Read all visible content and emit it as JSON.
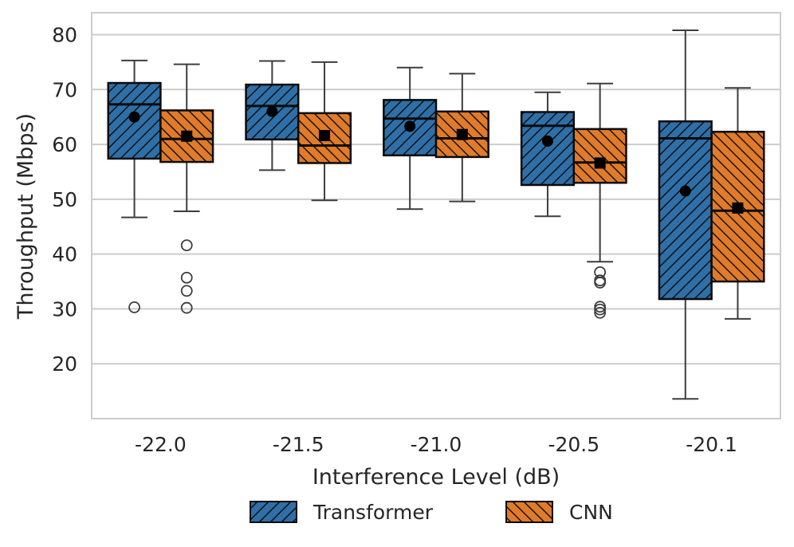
{
  "chart_data": {
    "type": "box",
    "title": "",
    "xlabel": "Interference Level (dB)",
    "ylabel": "Throughput (Mbps)",
    "ylim": [
      10,
      84
    ],
    "yticks": [
      20,
      30,
      40,
      50,
      60,
      70,
      80
    ],
    "ytick_labels": [
      "20",
      "30",
      "40",
      "50",
      "60",
      "70",
      "80"
    ],
    "grid": true,
    "legend_position": "bottom-center",
    "categories": [
      "-22.0",
      "-21.5",
      "-21.0",
      "-20.5",
      "-20.1"
    ],
    "series": [
      {
        "name": "Transformer",
        "color": "#2f6fa7",
        "hatch": "forward-diagonal",
        "mean_marker": "circle",
        "boxes": [
          {
            "whisker_low": 46.7,
            "q1": 57.4,
            "median": 67.3,
            "q3": 71.2,
            "whisker_high": 75.3,
            "mean": 65.0,
            "outliers": [
              30.3
            ]
          },
          {
            "whisker_low": 55.3,
            "q1": 60.9,
            "median": 67.0,
            "q3": 70.9,
            "whisker_high": 75.2,
            "mean": 66.0,
            "outliers": []
          },
          {
            "whisker_low": 48.2,
            "q1": 58.0,
            "median": 64.7,
            "q3": 68.1,
            "whisker_high": 74.0,
            "mean": 63.3,
            "outliers": []
          },
          {
            "whisker_low": 46.9,
            "q1": 52.6,
            "median": 63.4,
            "q3": 65.9,
            "whisker_high": 69.5,
            "mean": 60.6,
            "outliers": []
          },
          {
            "whisker_low": 13.6,
            "q1": 31.8,
            "median": 61.1,
            "q3": 64.2,
            "whisker_high": 80.8,
            "mean": 51.5,
            "outliers": []
          }
        ]
      },
      {
        "name": "CNN",
        "color": "#e07b2a",
        "hatch": "back-diagonal",
        "mean_marker": "square",
        "boxes": [
          {
            "whisker_low": 47.8,
            "q1": 56.8,
            "median": 61.0,
            "q3": 66.2,
            "whisker_high": 74.6,
            "mean": 61.5,
            "outliers": [
              41.6,
              35.7,
              33.3,
              30.2
            ]
          },
          {
            "whisker_low": 49.8,
            "q1": 56.6,
            "median": 59.8,
            "q3": 65.7,
            "whisker_high": 75.0,
            "mean": 61.6,
            "outliers": []
          },
          {
            "whisker_low": 49.6,
            "q1": 57.7,
            "median": 61.1,
            "q3": 66.0,
            "whisker_high": 72.9,
            "mean": 61.8,
            "outliers": []
          },
          {
            "whisker_low": 38.6,
            "q1": 53.0,
            "median": 56.7,
            "q3": 62.8,
            "whisker_high": 71.1,
            "mean": 56.6,
            "outliers": [
              36.7,
              35.2,
              34.8,
              30.4,
              29.9,
              29.3
            ]
          },
          {
            "whisker_low": 28.2,
            "q1": 35.0,
            "median": 47.9,
            "q3": 62.3,
            "whisker_high": 70.3,
            "mean": 48.4,
            "outliers": []
          }
        ]
      }
    ]
  }
}
